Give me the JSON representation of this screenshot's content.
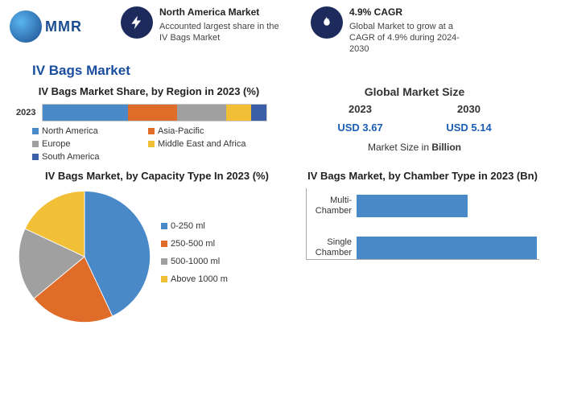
{
  "logo": {
    "text": "MMR"
  },
  "header": {
    "stat1": {
      "title": "North America Market",
      "text": "Accounted largest share in the IV Bags Market"
    },
    "stat2": {
      "title": "4.9% CAGR",
      "text": "Global Market to grow at a CAGR of 4.9% during 2024-2030"
    }
  },
  "main_title": "IV Bags Market",
  "region_chart": {
    "type": "stacked-bar",
    "title": "IV Bags Market Share, by Region in 2023 (%)",
    "year": "2023",
    "categories": [
      "North America",
      "Asia-Pacific",
      "Europe",
      "Middle East and Africa",
      "South America"
    ],
    "values": [
      38,
      22,
      22,
      11,
      7
    ],
    "colors": [
      "#4a89c8",
      "#e06c2a",
      "#a0a0a0",
      "#f2c037",
      "#3a5fa8"
    ]
  },
  "market_size": {
    "title": "Global Market Size",
    "year1": "2023",
    "year2": "2030",
    "val1": "USD 3.67",
    "val2": "USD 5.14",
    "note_prefix": "Market Size in ",
    "note_bold": "Billion",
    "value_color": "#1a5db5"
  },
  "capacity_chart": {
    "type": "pie",
    "title": "IV Bags Market, by Capacity Type In 2023 (%)",
    "labels": [
      "0-250 ml",
      "250-500 ml",
      "500-1000 ml",
      "Above 1000 m"
    ],
    "values": [
      43,
      21,
      18,
      18
    ],
    "colors": [
      "#4a89c8",
      "#e06c2a",
      "#a0a0a0",
      "#f2c037"
    ]
  },
  "chamber_chart": {
    "type": "bar",
    "title": "IV Bags Market, by Chamber Type in 2023 (Bn)",
    "categories": [
      "Multi-Chamber",
      "Single Chamber"
    ],
    "values": [
      1.4,
      2.27
    ],
    "xmax": 2.3,
    "bar_color": "#4a89c8"
  },
  "styling": {
    "header_icon_bg": "#1d2b5c",
    "title_color": "#1a4d9f",
    "font": "Arial"
  }
}
